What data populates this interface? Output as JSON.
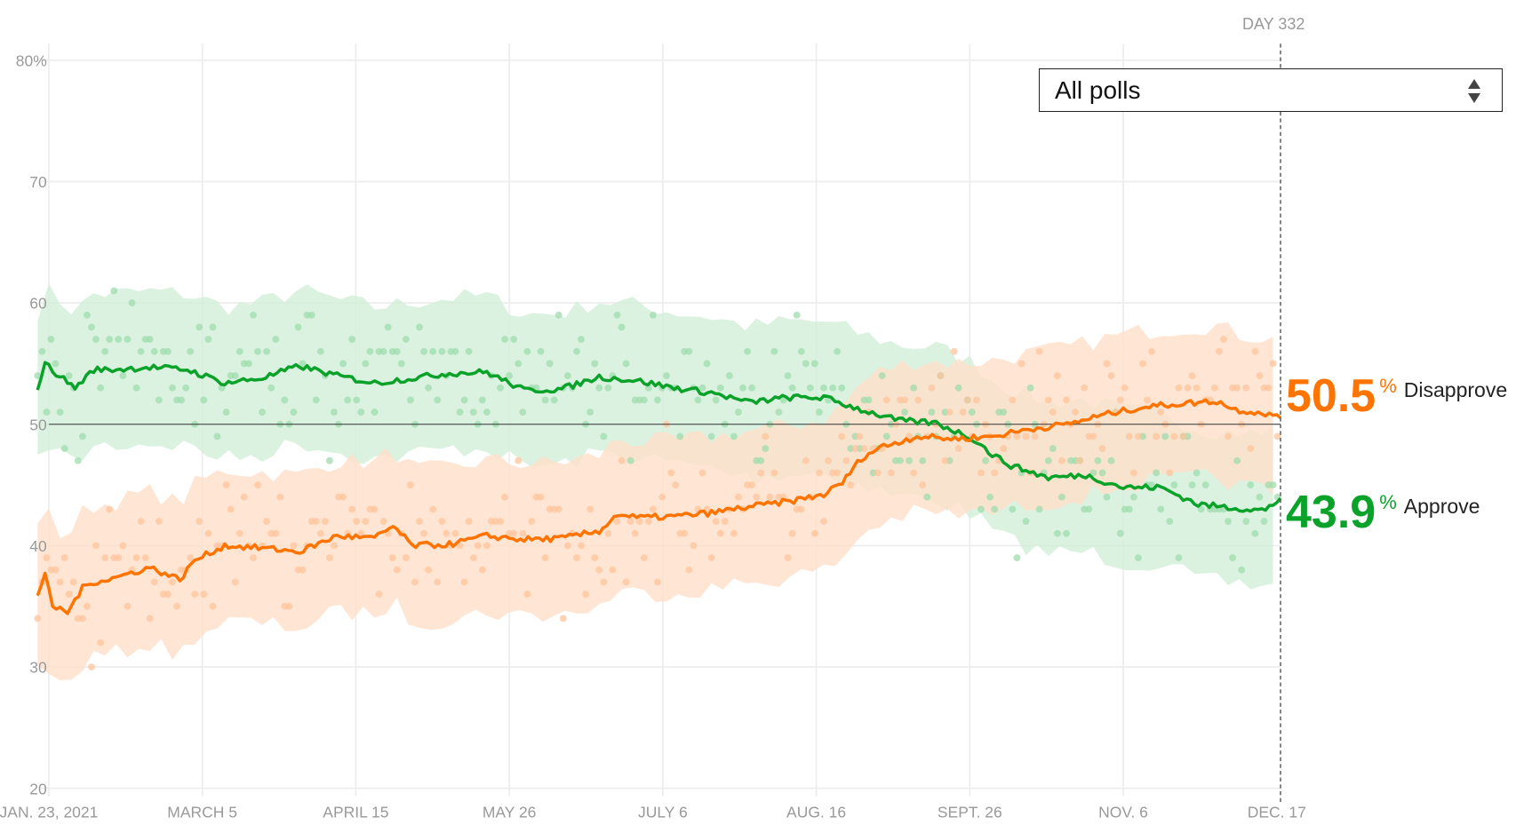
{
  "day_marker": "DAY 332",
  "select": {
    "value": "All polls"
  },
  "readouts": {
    "disapprove": {
      "value": "50.5",
      "unit": "%",
      "label": "Disapprove"
    },
    "approve": {
      "value": "43.9",
      "unit": "%",
      "label": "Approve"
    }
  },
  "colors": {
    "approve": "#0ba22a",
    "disapprove": "#ff7400",
    "approve_band": "#d3efda",
    "disapprove_band": "#ffe0c9"
  },
  "chart_data": {
    "type": "line",
    "title": "",
    "xlabel": "",
    "ylabel": "",
    "ylim": [
      20,
      80
    ],
    "y_ticks": [
      "80%",
      "70",
      "60",
      "50",
      "40",
      "30",
      "20"
    ],
    "y_tick_values": [
      80,
      70,
      60,
      50,
      40,
      30,
      20
    ],
    "x_ticks": [
      "JAN. 23, 2021",
      "MARCH 5",
      "APRIL 15",
      "MAY 26",
      "JULY 6",
      "AUG. 16",
      "SEPT. 26",
      "NOV. 6",
      "DEC. 17"
    ],
    "x_tick_days": [
      3,
      44,
      85,
      126,
      167,
      208,
      249,
      290,
      331
    ],
    "reference_line": 50,
    "current_day": 332,
    "grid": true,
    "series": [
      {
        "name": "Approve",
        "days": [
          0,
          2,
          5,
          10,
          15,
          20,
          30,
          40,
          50,
          60,
          70,
          80,
          90,
          100,
          110,
          120,
          130,
          140,
          150,
          160,
          170,
          180,
          190,
          200,
          210,
          220,
          230,
          240,
          250,
          255,
          260,
          270,
          280,
          290,
          300,
          310,
          320,
          328,
          332
        ],
        "values": [
          53,
          55,
          54.2,
          53,
          54.5,
          54.5,
          54.7,
          54.5,
          53.4,
          53.8,
          54.8,
          54,
          53.4,
          53.8,
          54.2,
          54.3,
          52.8,
          52.9,
          53.9,
          53.6,
          53,
          52.6,
          51.8,
          52.2,
          52.2,
          51.2,
          50.3,
          50.1,
          48.8,
          47.5,
          46.6,
          45.6,
          45.8,
          44.8,
          44.8,
          43.4,
          43.1,
          42.9,
          43.9
        ]
      },
      {
        "name": "Disapprove",
        "days": [
          0,
          2,
          4,
          8,
          12,
          15,
          20,
          30,
          38,
          42,
          50,
          60,
          70,
          80,
          90,
          95,
          100,
          110,
          120,
          130,
          140,
          150,
          155,
          160,
          170,
          180,
          190,
          200,
          210,
          215,
          220,
          225,
          235,
          245,
          255,
          265,
          275,
          285,
          295,
          305,
          315,
          320,
          328,
          332
        ],
        "values": [
          36,
          37.5,
          35,
          34.5,
          36.5,
          37,
          37.3,
          38.2,
          37.2,
          38.8,
          40,
          39.8,
          39.5,
          40.8,
          40.6,
          41.6,
          40,
          40.1,
          40.8,
          40.5,
          40.6,
          41.2,
          42.6,
          42.3,
          42.4,
          42.7,
          43.2,
          43.6,
          44.2,
          45.2,
          47.2,
          48.1,
          49,
          48.8,
          49,
          49.6,
          50,
          50.8,
          51.4,
          51.7,
          51.9,
          51.2,
          50.9,
          50.5
        ]
      }
    ]
  }
}
